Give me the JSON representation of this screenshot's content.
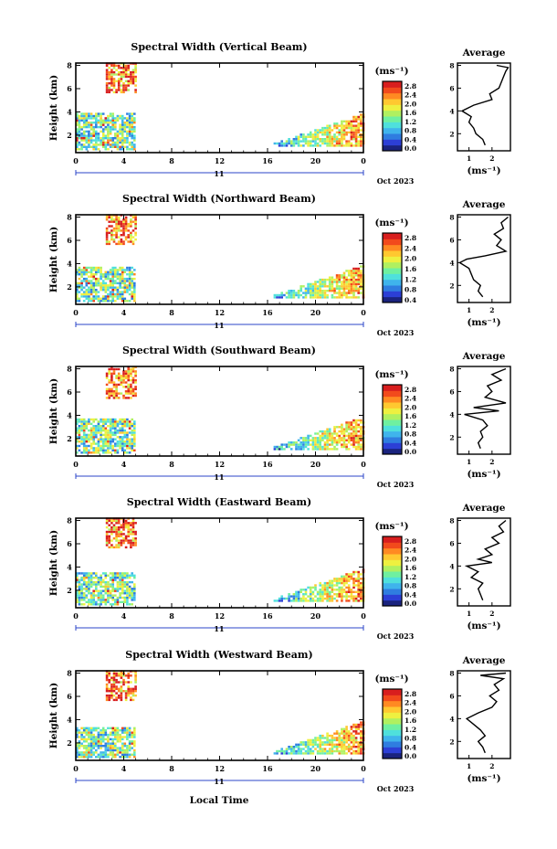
{
  "figure": {
    "date_label": "Oct 2023",
    "bottom_xlabel": "Local Time",
    "ylabel": "Height (km)",
    "units_label": "(ms⁻¹)",
    "avg_title": "Average",
    "avg_xlabel": "(ms⁻¹)",
    "day_label": "11",
    "x_ticks": [
      "0",
      "4",
      "8",
      "12",
      "16",
      "20",
      "0"
    ],
    "y_ticks": [
      "2",
      "4",
      "6",
      "8"
    ]
  },
  "colors": {
    "scale": [
      "#1a237e",
      "#2c3fd6",
      "#2f7de0",
      "#3fb4ec",
      "#4fe0dc",
      "#6ff0a0",
      "#b0f060",
      "#eef040",
      "#ffc830",
      "#ff8a22",
      "#f24a1c",
      "#d81e1e"
    ]
  },
  "chart_data": [
    {
      "type": "heatmap",
      "title": "Spectral Width (Vertical Beam)",
      "xlabel": "",
      "ylabel": "Height (km)",
      "xlim": [
        0,
        24
      ],
      "ylim": [
        0.5,
        8.2
      ],
      "colorbar": {
        "ticks": [
          "2.8",
          "2.4",
          "2.0",
          "1.6",
          "1.2",
          "0.8",
          "0.4",
          "0.0"
        ]
      },
      "average": {
        "xlabel": "(ms⁻¹)",
        "x_ticks": [
          "1",
          "2"
        ],
        "xlim": [
          0.5,
          2.8
        ],
        "profile": [
          [
            1.7,
            1.0
          ],
          [
            1.6,
            1.5
          ],
          [
            1.3,
            2.0
          ],
          [
            1.2,
            2.5
          ],
          [
            1.0,
            3.0
          ],
          [
            1.1,
            3.5
          ],
          [
            0.7,
            4.0
          ],
          [
            1.2,
            4.5
          ],
          [
            2.0,
            5.0
          ],
          [
            1.9,
            5.5
          ],
          [
            2.3,
            6.0
          ],
          [
            2.4,
            6.5
          ],
          [
            2.5,
            7.0
          ],
          [
            2.6,
            7.5
          ],
          [
            2.7,
            7.8
          ],
          [
            2.2,
            8.0
          ]
        ]
      }
    },
    {
      "type": "heatmap",
      "title": "Spectral Width (Northward Beam)",
      "xlabel": "",
      "ylabel": "Height (km)",
      "xlim": [
        0,
        24
      ],
      "ylim": [
        0.5,
        8.2
      ],
      "colorbar": {
        "ticks": [
          "2.8",
          "2.4",
          "2.0",
          "1.6",
          "1.2",
          "0.8",
          "0.4"
        ]
      },
      "average": {
        "xlabel": "(ms⁻¹)",
        "x_ticks": [
          "1",
          "2"
        ],
        "xlim": [
          0.5,
          2.8
        ],
        "profile": [
          [
            1.6,
            1.0
          ],
          [
            1.4,
            1.5
          ],
          [
            1.5,
            2.0
          ],
          [
            1.2,
            2.5
          ],
          [
            1.1,
            3.0
          ],
          [
            1.0,
            3.5
          ],
          [
            0.6,
            4.0
          ],
          [
            0.9,
            4.3
          ],
          [
            1.7,
            4.6
          ],
          [
            2.6,
            5.0
          ],
          [
            2.2,
            5.5
          ],
          [
            2.4,
            6.0
          ],
          [
            2.1,
            6.5
          ],
          [
            2.5,
            7.0
          ],
          [
            2.4,
            7.5
          ],
          [
            2.7,
            8.0
          ]
        ]
      }
    },
    {
      "type": "heatmap",
      "title": "Spectral Width (Southward Beam)",
      "xlabel": "",
      "ylabel": "Height (km)",
      "xlim": [
        0,
        24
      ],
      "ylim": [
        0.5,
        8.2
      ],
      "colorbar": {
        "ticks": [
          "2.8",
          "2.4",
          "2.0",
          "1.6",
          "1.2",
          "0.8",
          "0.4",
          "0.0"
        ]
      },
      "average": {
        "xlabel": "(ms⁻¹)",
        "x_ticks": [
          "1",
          "2"
        ],
        "xlim": [
          0.5,
          2.8
        ],
        "profile": [
          [
            1.5,
            1.0
          ],
          [
            1.4,
            1.5
          ],
          [
            1.6,
            2.0
          ],
          [
            1.5,
            2.5
          ],
          [
            1.8,
            3.0
          ],
          [
            1.6,
            3.5
          ],
          [
            0.8,
            4.0
          ],
          [
            2.3,
            4.3
          ],
          [
            1.2,
            4.6
          ],
          [
            2.6,
            5.0
          ],
          [
            1.7,
            5.5
          ],
          [
            2.0,
            6.0
          ],
          [
            1.8,
            6.5
          ],
          [
            2.4,
            7.0
          ],
          [
            2.0,
            7.5
          ],
          [
            2.6,
            8.0
          ]
        ]
      }
    },
    {
      "type": "heatmap",
      "title": "Spectral Width (Eastward Beam)",
      "xlabel": "",
      "ylabel": "Height (km)",
      "xlim": [
        0,
        24
      ],
      "ylim": [
        0.5,
        8.2
      ],
      "colorbar": {
        "ticks": [
          "2.8",
          "2.4",
          "2.0",
          "1.6",
          "1.2",
          "0.8",
          "0.4",
          "0.0"
        ]
      },
      "average": {
        "xlabel": "(ms⁻¹)",
        "x_ticks": [
          "1",
          "2"
        ],
        "xlim": [
          0.5,
          2.8
        ],
        "profile": [
          [
            1.6,
            1.0
          ],
          [
            1.5,
            1.5
          ],
          [
            1.4,
            2.0
          ],
          [
            1.6,
            2.5
          ],
          [
            1.1,
            3.0
          ],
          [
            1.4,
            3.5
          ],
          [
            0.9,
            4.0
          ],
          [
            2.0,
            4.3
          ],
          [
            1.4,
            4.6
          ],
          [
            2.0,
            5.0
          ],
          [
            1.7,
            5.5
          ],
          [
            2.3,
            6.0
          ],
          [
            2.0,
            6.5
          ],
          [
            2.5,
            7.0
          ],
          [
            2.3,
            7.5
          ],
          [
            2.6,
            8.0
          ]
        ]
      }
    },
    {
      "type": "heatmap",
      "title": "Spectral Width (Westward Beam)",
      "xlabel": "Local Time",
      "ylabel": "Height (km)",
      "xlim": [
        0,
        24
      ],
      "ylim": [
        0.5,
        8.2
      ],
      "colorbar": {
        "ticks": [
          "2.8",
          "2.4",
          "2.0",
          "1.6",
          "1.2",
          "0.8",
          "0.4",
          "0.0"
        ]
      },
      "average": {
        "xlabel": "(ms⁻¹)",
        "x_ticks": [
          "1",
          "2"
        ],
        "xlim": [
          0.5,
          2.8
        ],
        "profile": [
          [
            1.7,
            1.0
          ],
          [
            1.6,
            1.5
          ],
          [
            1.4,
            2.0
          ],
          [
            1.7,
            2.5
          ],
          [
            1.5,
            3.0
          ],
          [
            1.2,
            3.5
          ],
          [
            0.9,
            4.0
          ],
          [
            1.4,
            4.5
          ],
          [
            2.0,
            5.0
          ],
          [
            2.2,
            5.5
          ],
          [
            1.9,
            6.0
          ],
          [
            2.3,
            6.5
          ],
          [
            2.1,
            7.0
          ],
          [
            2.5,
            7.5
          ],
          [
            1.5,
            7.8
          ],
          [
            2.6,
            8.0
          ]
        ]
      }
    }
  ]
}
